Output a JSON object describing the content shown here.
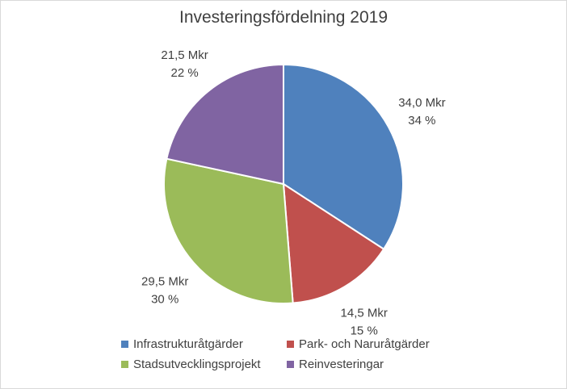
{
  "chart_data": {
    "type": "pie",
    "title": "Investeringsfördelning 2019",
    "categories": [
      "Infrastrukturåtgärder",
      "Park- och Naruråtgärder",
      "Stadsutvecklingsprojekt",
      "Reinvesteringar"
    ],
    "values": [
      34.0,
      14.5,
      29.5,
      21.5
    ],
    "value_labels": [
      "34,0 Mkr",
      "14,5 Mkr",
      "29,5 Mkr",
      "21,5 Mkr"
    ],
    "percent_labels": [
      "34 %",
      "15 %",
      "30 %",
      "22 %"
    ],
    "colors": [
      "#4f81bd",
      "#c0504d",
      "#9bbb59",
      "#8064a2"
    ],
    "legend_position": "bottom"
  }
}
